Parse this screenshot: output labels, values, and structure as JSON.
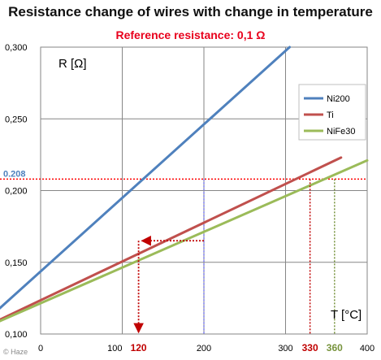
{
  "title": "Resistance change of wires with change in temperature",
  "subtitle": "Reference resistance: 0,1 Ω",
  "credit": "© Haze",
  "chart_data": {
    "type": "line",
    "ylabel": "R [Ω]",
    "xlabel": "T [°C]",
    "xlim": [
      0,
      400
    ],
    "ylim": [
      0.1,
      0.3
    ],
    "x_ticks": [
      {
        "value": 0,
        "label": "0"
      },
      {
        "value": 100,
        "label": "100"
      },
      {
        "value": 200,
        "label": "200"
      },
      {
        "value": 300,
        "label": "300"
      },
      {
        "value": 400,
        "label": "400"
      }
    ],
    "y_ticks": [
      {
        "value": 0.1,
        "label": "0,100"
      },
      {
        "value": 0.15,
        "label": "0,150"
      },
      {
        "value": 0.2,
        "label": "0,200"
      },
      {
        "value": 0.25,
        "label": "0,250"
      },
      {
        "value": 0.3,
        "label": "0,300"
      }
    ],
    "grid": true,
    "legend_position": "right",
    "series": [
      {
        "name": "Ni200",
        "color": "#4f81bd",
        "x": [
          -50,
          305
        ],
        "y": [
          0.118,
          0.3
        ]
      },
      {
        "name": "Ti",
        "color": "#c0504d",
        "x": [
          -50,
          368
        ],
        "y": [
          0.11,
          0.223
        ]
      },
      {
        "name": "NiFe30",
        "color": "#9bbb59",
        "x": [
          -50,
          400
        ],
        "y": [
          0.109,
          0.221
        ]
      }
    ],
    "reference_line": {
      "value": 0.208,
      "label": "0.208",
      "color": "#ff0000"
    },
    "markers": [
      {
        "value": 120,
        "label": "120",
        "color": "#c00000"
      },
      {
        "value": 330,
        "label": "330",
        "color": "#c00000"
      },
      {
        "value": 360,
        "label": "360",
        "color": "#77933c"
      }
    ],
    "blue_drop_x": 200,
    "lookup": {
      "from_x": 200,
      "to_x": 120,
      "y": 0.165
    }
  }
}
